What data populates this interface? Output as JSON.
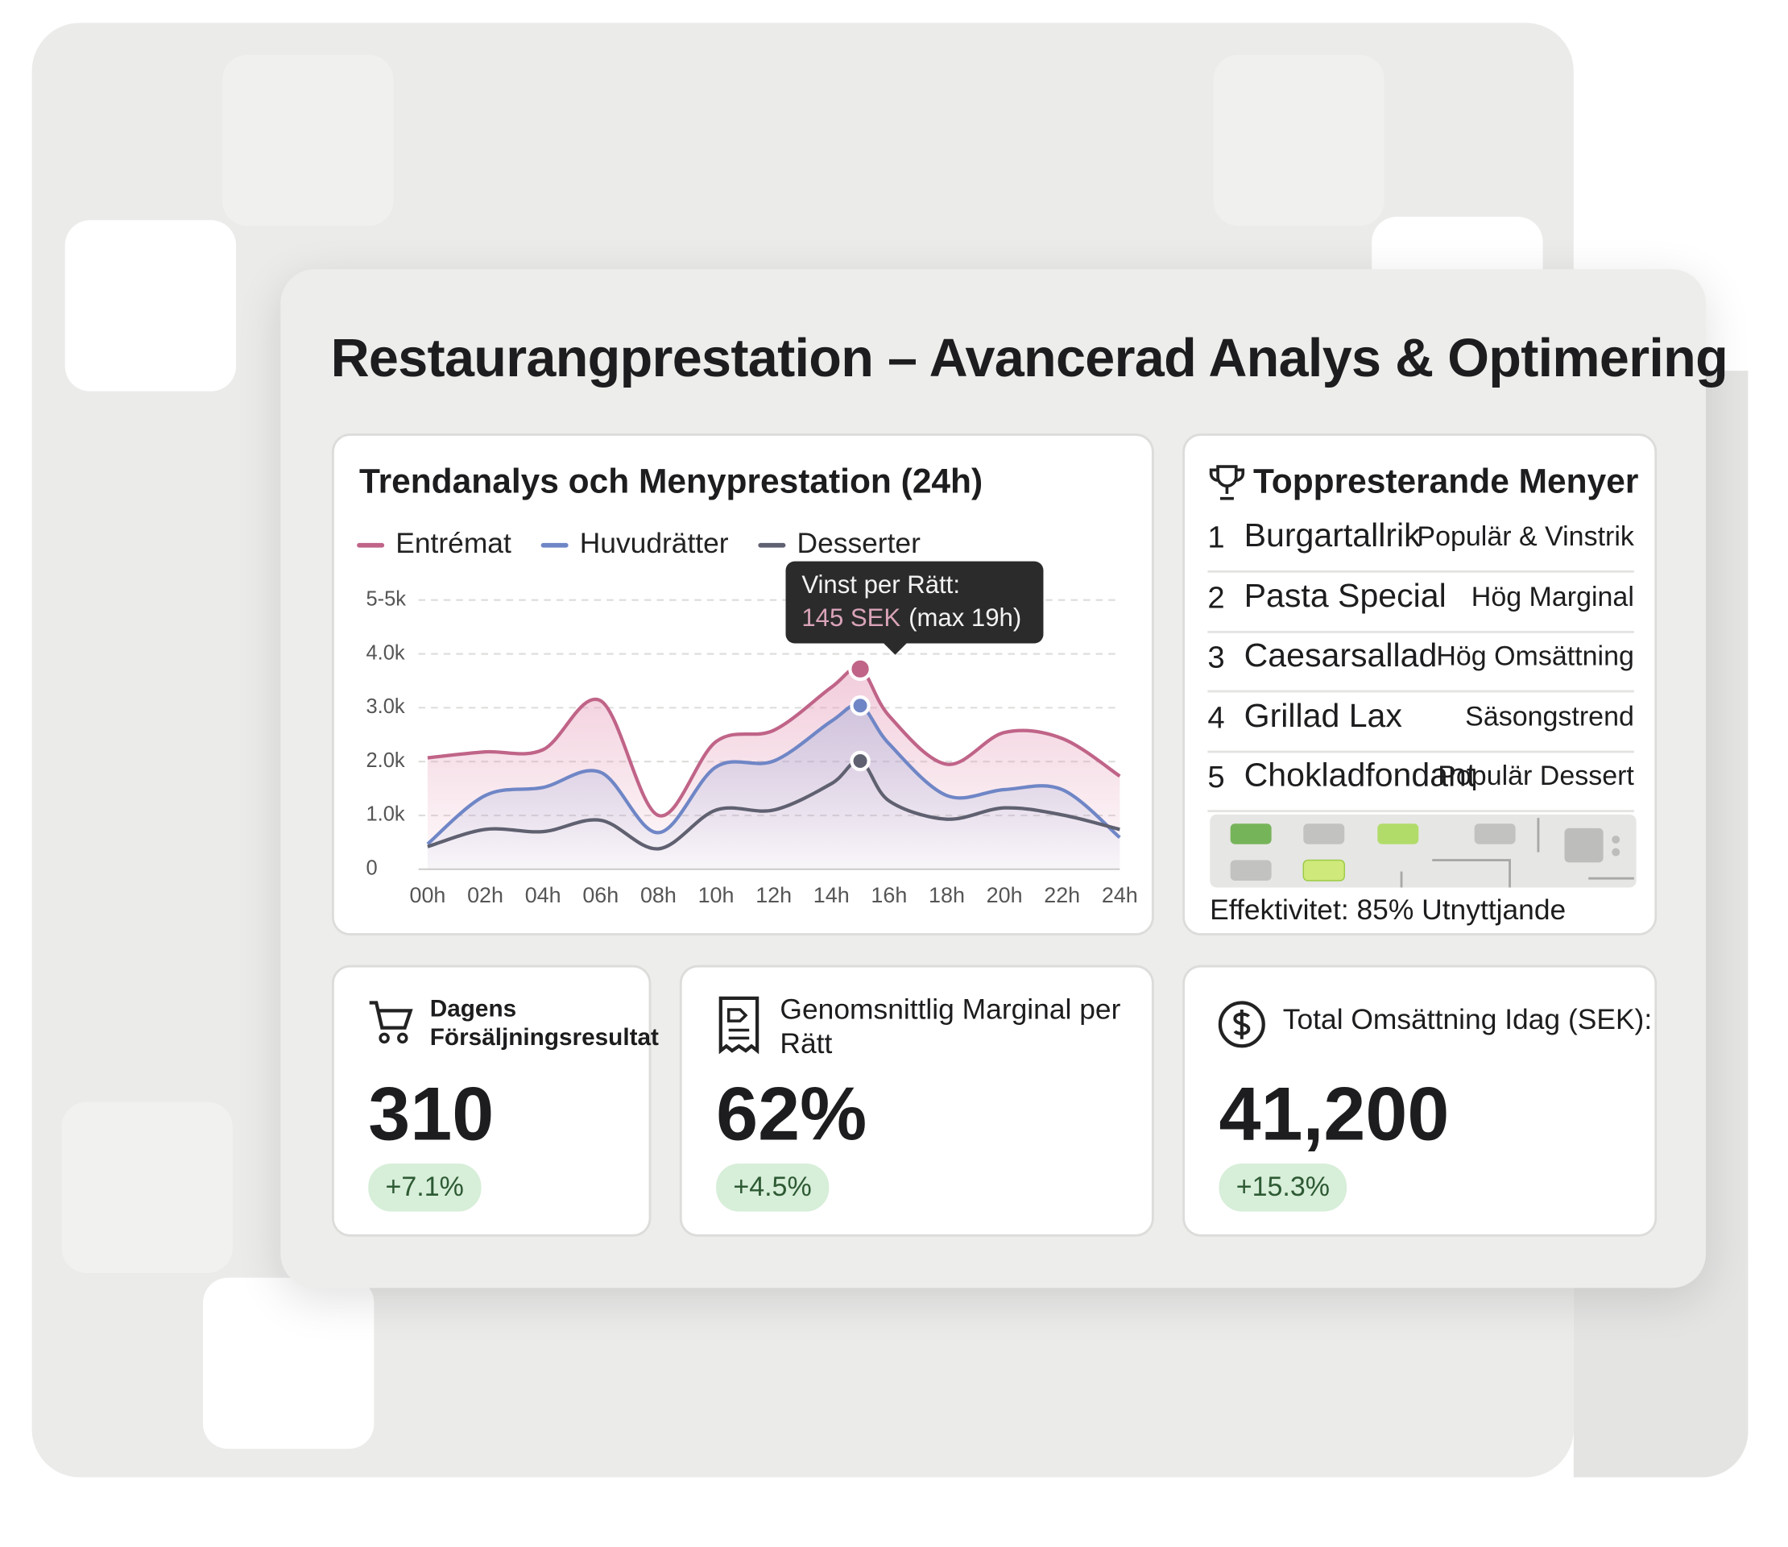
{
  "header": {
    "title": "Restaurangprestation – Avancerad Analys & Optimering"
  },
  "chart_data": {
    "type": "line",
    "title": "Trendanalys och Menyprestation (24h)",
    "x": [
      0,
      2,
      4,
      6,
      8,
      10,
      12,
      14,
      15,
      16,
      18,
      20,
      22,
      24
    ],
    "xlim": [
      0,
      24
    ],
    "xticks": [
      {
        "value": 0,
        "label": "00h"
      },
      {
        "value": 2,
        "label": "02h"
      },
      {
        "value": 4,
        "label": "04h"
      },
      {
        "value": 6,
        "label": "06h"
      },
      {
        "value": 8,
        "label": "08h"
      },
      {
        "value": 10,
        "label": "10h"
      },
      {
        "value": 12,
        "label": "12h"
      },
      {
        "value": 14,
        "label": "14h"
      },
      {
        "value": 16,
        "label": "16h"
      },
      {
        "value": 18,
        "label": "18h"
      },
      {
        "value": 20,
        "label": "20h"
      },
      {
        "value": 22,
        "label": "22h"
      },
      {
        "value": 24,
        "label": "24h"
      }
    ],
    "ylim": [
      0,
      5000
    ],
    "yticks": [
      0,
      {
        "value": 1000,
        "label": "1.0k"
      },
      {
        "value": 2000,
        "label": "2.0k"
      },
      {
        "value": 3000,
        "label": "3.0k"
      },
      {
        "value": 4000,
        "label": "4.0k"
      },
      {
        "value": 5000,
        "label": "5-5k"
      }
    ],
    "grid": true,
    "series": [
      {
        "name": "Entrémat",
        "color": "#c06488",
        "values": [
          2070,
          2180,
          2220,
          3130,
          1000,
          2370,
          2580,
          3380,
          3720,
          2850,
          1950,
          2540,
          2430,
          1730
        ]
      },
      {
        "name": "Huvudrätter",
        "color": "#6f86c6",
        "values": [
          470,
          1370,
          1520,
          1800,
          680,
          1900,
          2010,
          2750,
          3040,
          2330,
          1370,
          1480,
          1480,
          590
        ]
      },
      {
        "name": "Desserter",
        "color": "#5f6070",
        "values": [
          420,
          740,
          700,
          910,
          380,
          1100,
          1100,
          1590,
          2010,
          1270,
          930,
          1140,
          1010,
          740
        ]
      }
    ],
    "tooltip": {
      "label": "Vinst per Rätt:",
      "value": "145 SEK",
      "note": "(max 19h)"
    }
  },
  "menus": {
    "title": "Toppresterande Menyer",
    "items": [
      {
        "rank": "1",
        "name": "Burgartallrik",
        "tag": "Populär & Vinstrik"
      },
      {
        "rank": "2",
        "name": "Pasta Special",
        "tag": "Hög Marginal"
      },
      {
        "rank": "3",
        "name": "Caesarsallad",
        "tag": "Hög Omsättning"
      },
      {
        "rank": "4",
        "name": "Grillad Lax",
        "tag": "Säsongstrend"
      },
      {
        "rank": "5",
        "name": "Chokladfondant",
        "tag": "Populär Dessert"
      }
    ],
    "efficiency": "Effektivitet: 85% Utnyttjande"
  },
  "kpis": [
    {
      "label": "Dagens Försäljningsresultat",
      "value": "310",
      "change": "+7.1%"
    },
    {
      "label": "Genomsnittlig Marginal per Rätt",
      "value": "62%",
      "change": "+4.5%"
    },
    {
      "label": "Total Omsättning Idag (SEK):",
      "value": "41,200",
      "change": "+15.3%"
    }
  ]
}
